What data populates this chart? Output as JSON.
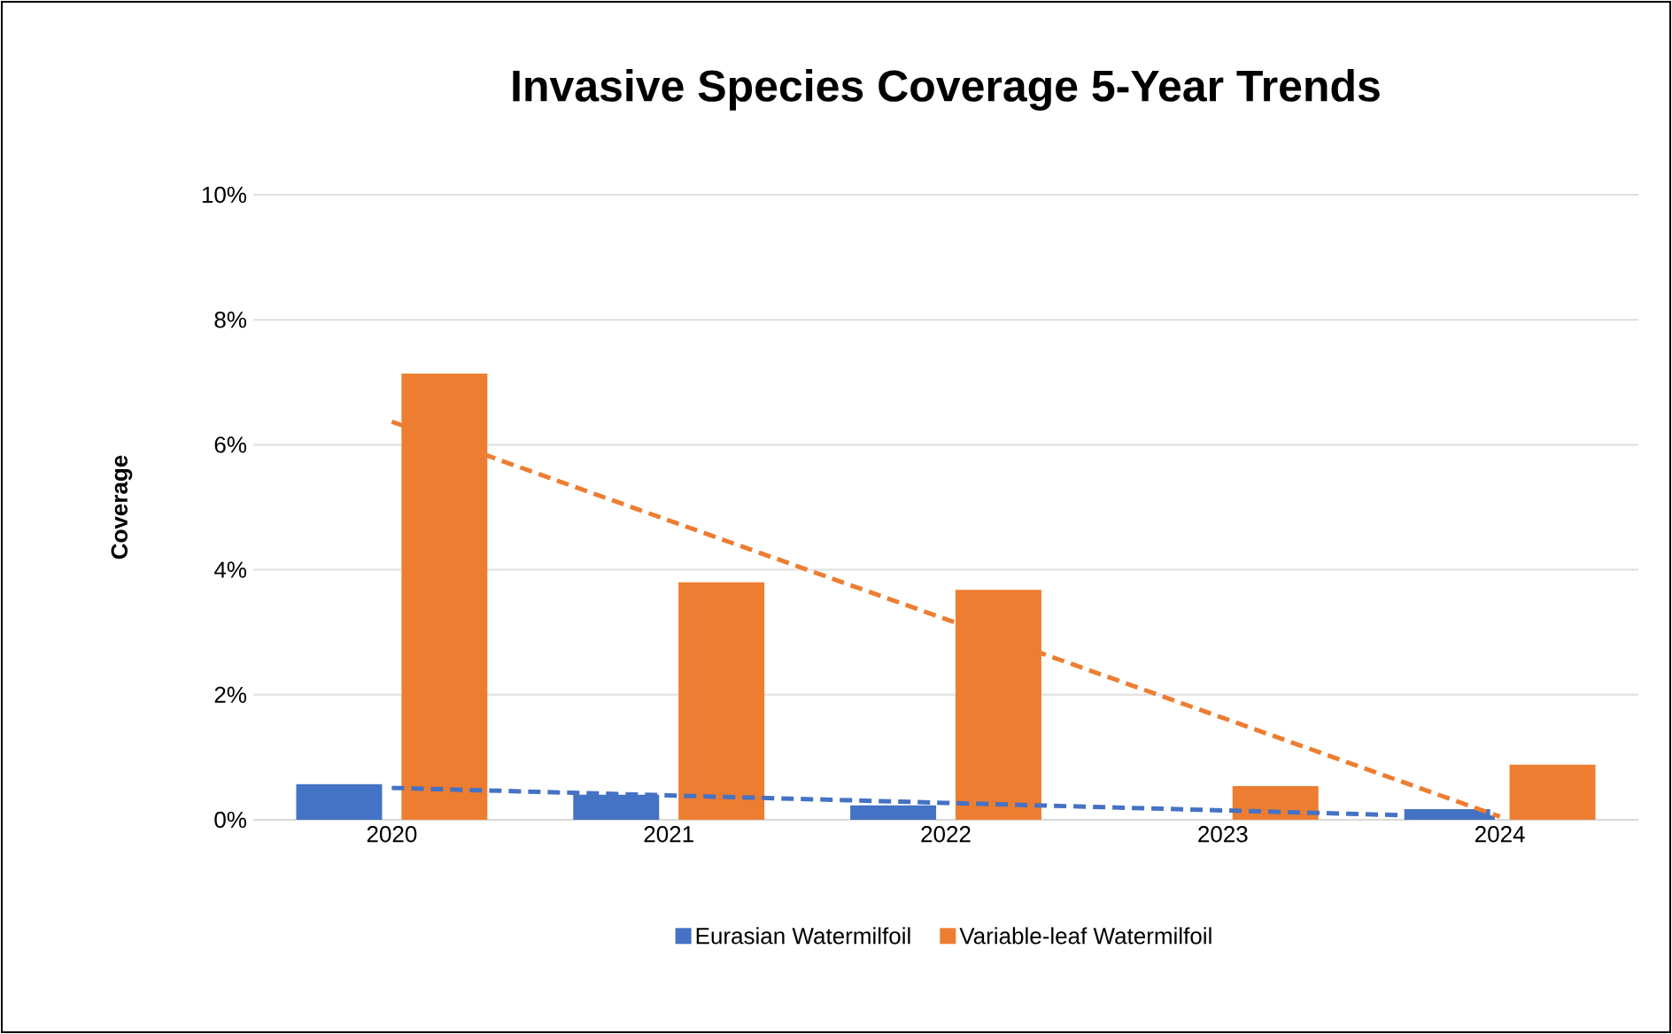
{
  "chart_data": {
    "type": "bar",
    "title": "Invasive Species Coverage 5-Year Trends",
    "ylabel": "Coverage",
    "categories": [
      "2020",
      "2021",
      "2022",
      "2023",
      "2024"
    ],
    "series": [
      {
        "name": "Eurasian Watermilfoil",
        "color": "#4472c4",
        "values": [
          0.57,
          0.4,
          0.23,
          0,
          0.17
        ]
      },
      {
        "name": "Variable-leaf Watermilfoil",
        "color": "#ed7d31",
        "values": [
          7.14,
          3.8,
          3.68,
          0.54,
          0.88
        ]
      },
      {
        "type": "line",
        "color": "#4472c4",
        "line_style": "dashed",
        "values": [
          0.51,
          0.39,
          0.27,
          0.15,
          0.03
        ]
      },
      {
        "type": "line",
        "color": "#ed7d31",
        "line_style": "dashed",
        "values": [
          6.37,
          4.79,
          3.21,
          1.63,
          0.05
        ]
      }
    ],
    "ylim": [
      0,
      10
    ],
    "yticks": [
      {
        "value": 0,
        "label": "0%"
      },
      {
        "value": 2,
        "label": "2%"
      },
      {
        "value": 4,
        "label": "4%"
      },
      {
        "value": 6,
        "label": "6%"
      },
      {
        "value": 8,
        "label": "8%"
      },
      {
        "value": 10,
        "label": "10%"
      }
    ],
    "grid": "y",
    "legend": "bottom"
  }
}
